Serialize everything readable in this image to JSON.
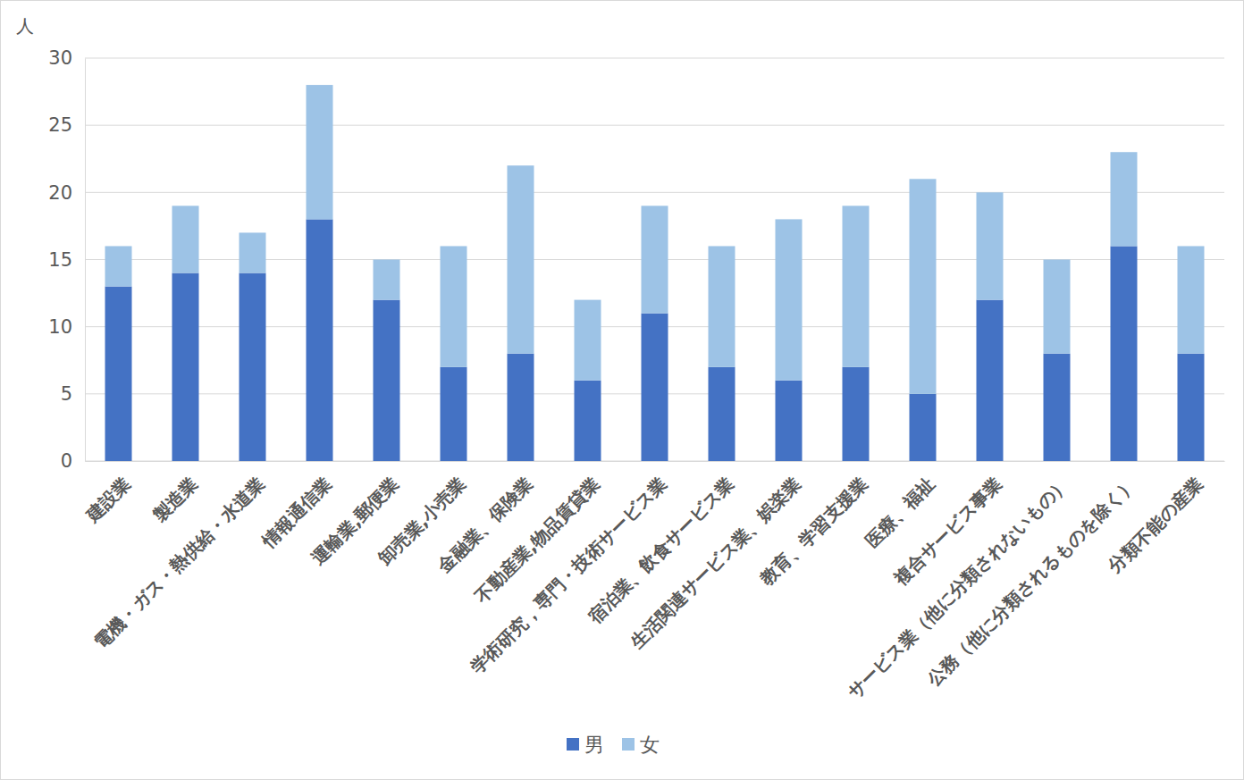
{
  "chart_data": {
    "type": "bar",
    "stacked": true,
    "y_label": "人",
    "categories": [
      "建設業",
      "製造業",
      "電機・ガス・熱供給・水道業",
      "情報通信業",
      "運輸業,郵便業",
      "卸売業,小売業",
      "金融業、保険業",
      "不動産業,物品賃貸業",
      "学術研究，専門・技術サービス業",
      "宿泊業、飲食サービス業",
      "生活関連サービス業、娯楽業",
      "教育、学習支援業",
      "医療、福祉",
      "複合サービス事業",
      "サービス業（他に分類されないもの）",
      "公務（他に分類されるものを除く）",
      "分類不能の産業"
    ],
    "series": [
      {
        "name": "男",
        "color": "#4472c4",
        "values": [
          13,
          14,
          14,
          18,
          12,
          7,
          8,
          6,
          11,
          7,
          6,
          7,
          5,
          12,
          8,
          16,
          8
        ]
      },
      {
        "name": "女",
        "color": "#9dc3e6",
        "values": [
          3,
          5,
          3,
          10,
          3,
          9,
          14,
          6,
          8,
          9,
          12,
          12,
          16,
          8,
          7,
          7,
          8
        ]
      }
    ],
    "ylim": [
      0,
      30
    ],
    "yticks": [
      0,
      5,
      10,
      15,
      20,
      25,
      30
    ],
    "grid": true,
    "legend": "bottom"
  }
}
